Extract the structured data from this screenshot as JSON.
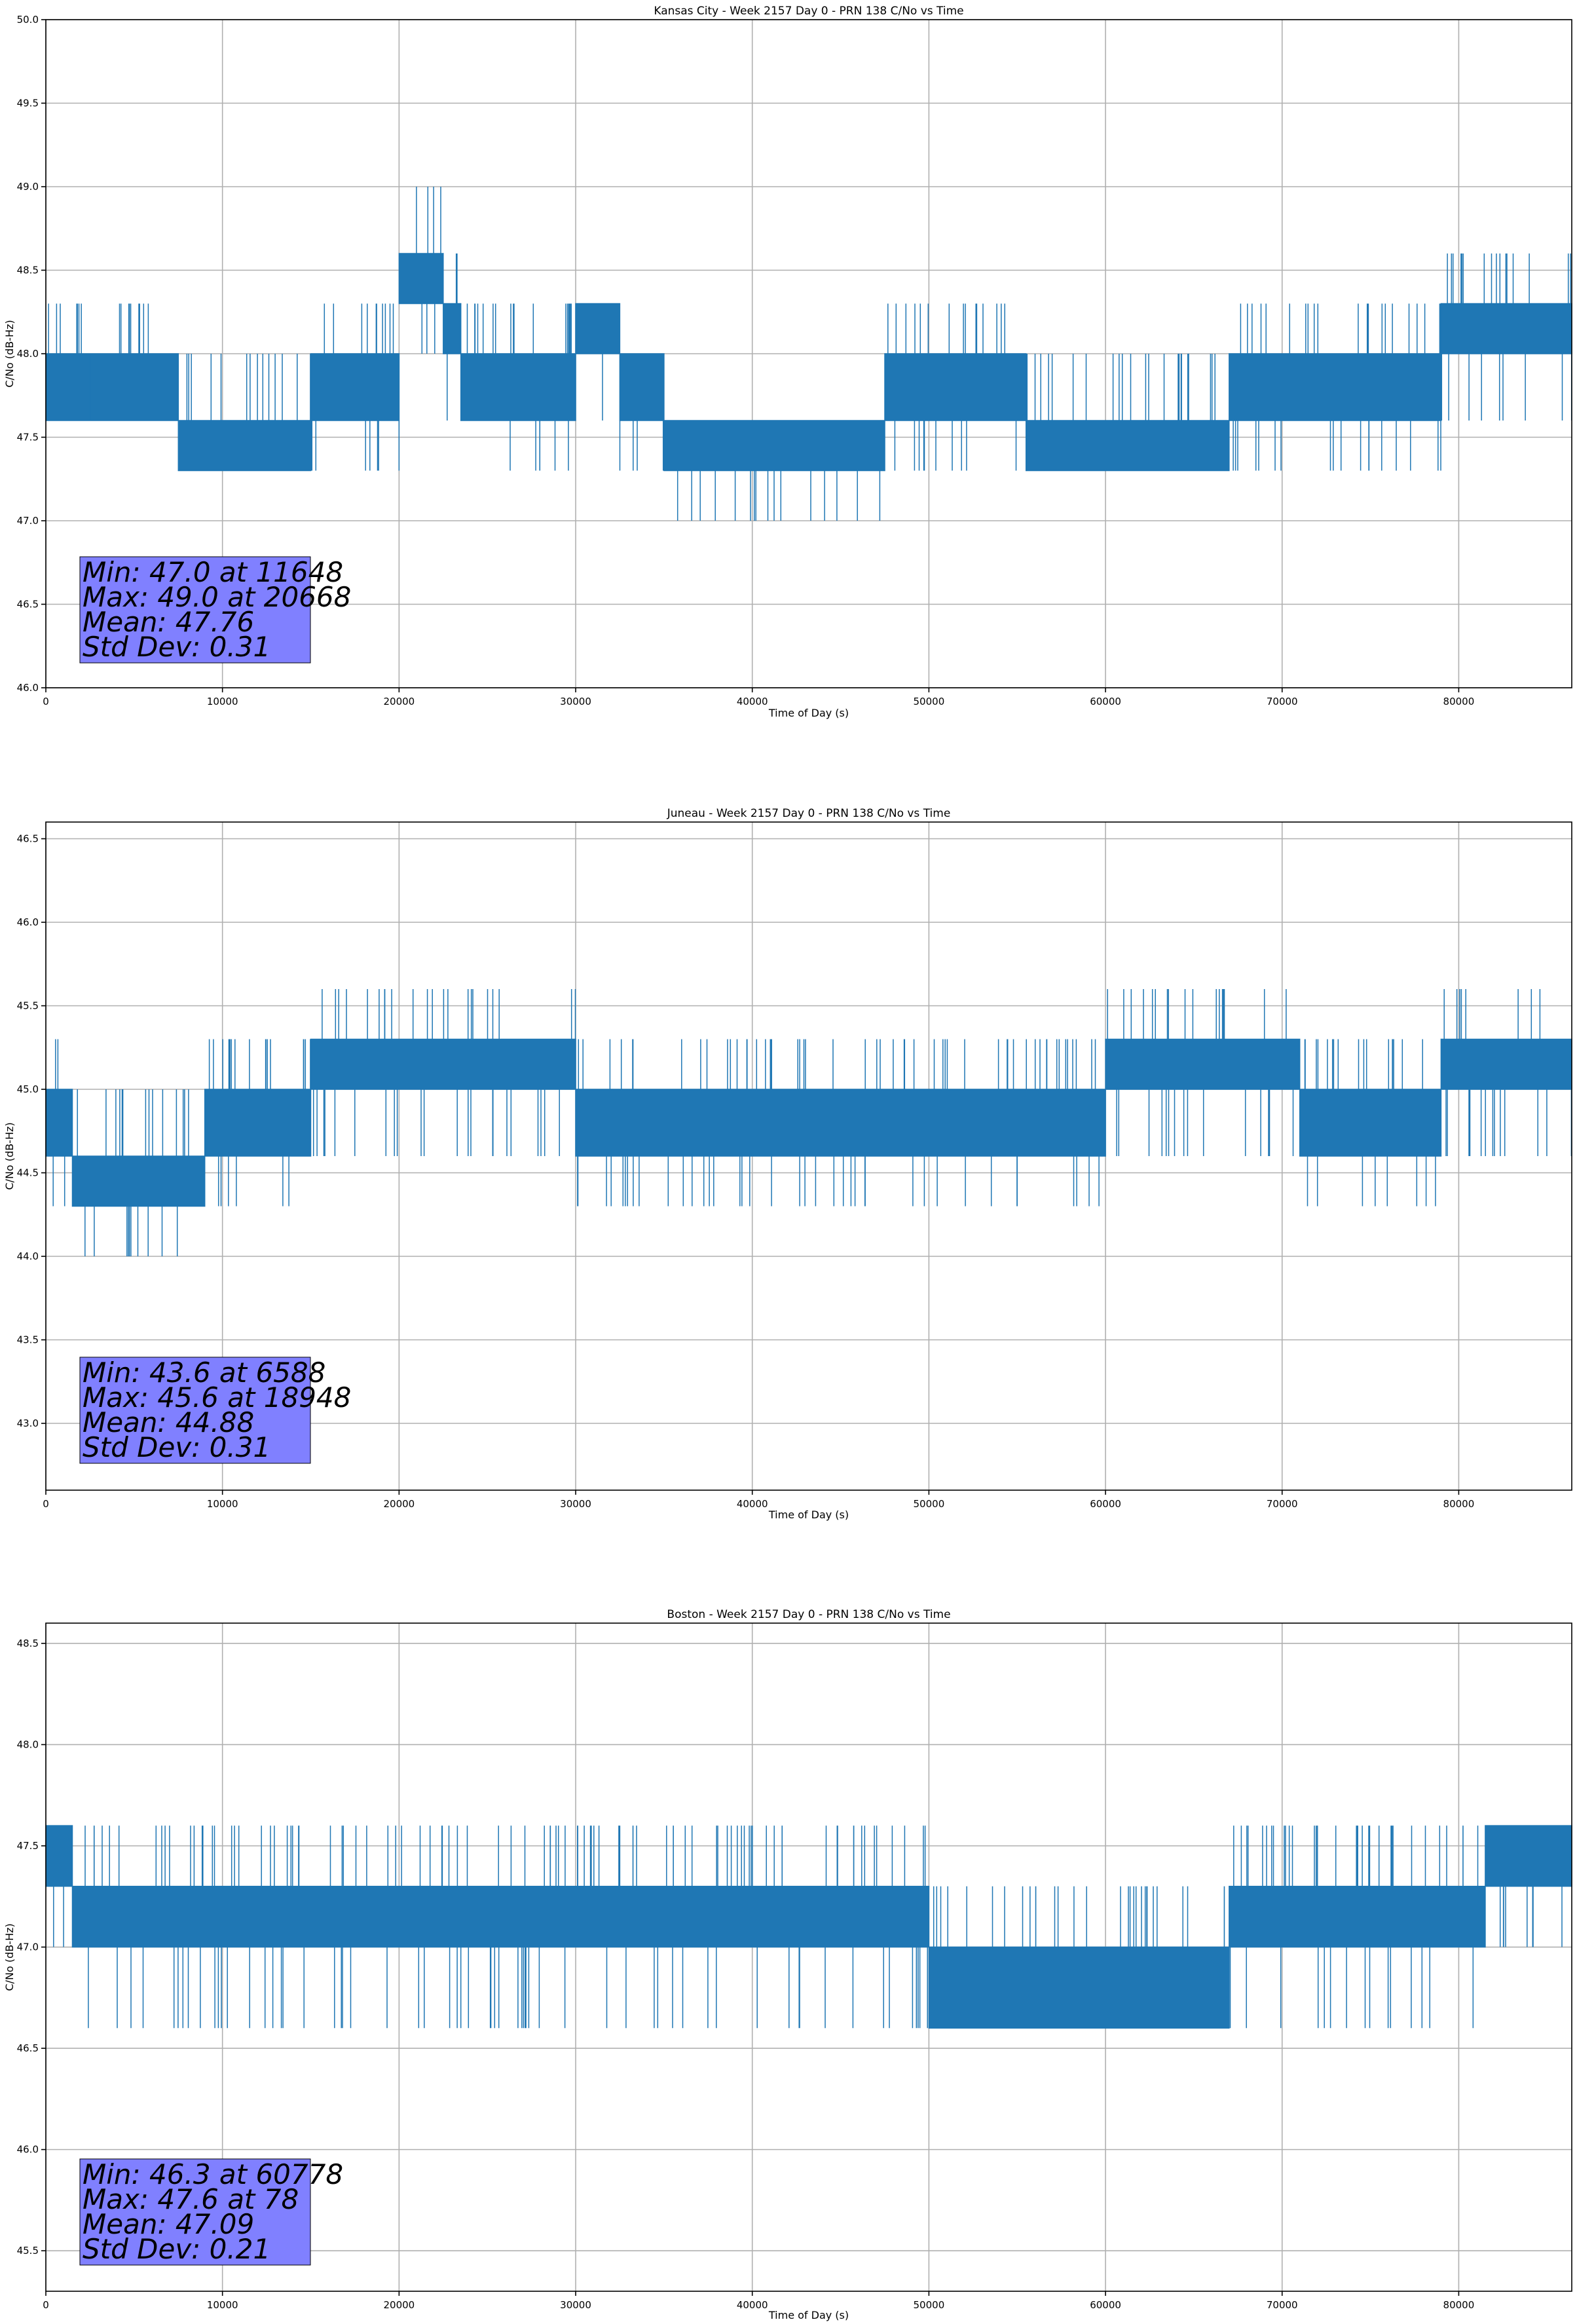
{
  "chart_data": [
    {
      "type": "line",
      "title": "Kansas City - Week 2157 Day 0 - PRN 138 C/No vs Time",
      "xlabel": "Time of Day (s)",
      "ylabel": "C/No (dB-Hz)",
      "xlim": [
        0,
        86400
      ],
      "ylim": [
        46.0,
        50.0
      ],
      "xticks": [
        "0",
        "10000",
        "20000",
        "30000",
        "40000",
        "50000",
        "60000",
        "70000",
        "80000"
      ],
      "xtick_values": [
        0,
        10000,
        20000,
        30000,
        40000,
        50000,
        60000,
        70000,
        80000
      ],
      "yticks": [
        "46.0",
        "46.5",
        "47.0",
        "47.5",
        "48.0",
        "48.5",
        "49.0",
        "49.5",
        "50.0"
      ],
      "ytick_values": [
        46.0,
        46.5,
        47.0,
        47.5,
        48.0,
        48.5,
        49.0,
        49.5,
        50.0
      ],
      "grid": true,
      "color": "#1f77b4",
      "series": [
        {
          "name": "C/No",
          "segments": [
            {
              "x": [
                0,
                2500
              ],
              "levels": [
                47.6,
                48.0,
                48.3
              ],
              "base": [
                47.6,
                48.0
              ],
              "spike_high": 48.3,
              "spike_low": 47.6
            },
            {
              "x": [
                2500,
                7500
              ],
              "levels": [
                47.6,
                48.0
              ],
              "base": [
                47.6,
                48.0
              ],
              "spike_high": 48.3,
              "spike_low": 47.6
            },
            {
              "x": [
                7500,
                15000
              ],
              "levels": [
                47.3,
                47.6
              ],
              "base": [
                47.3,
                47.6
              ],
              "spike_high": 48.0,
              "spike_low": 47.3
            },
            {
              "x": [
                15000,
                20000
              ],
              "levels": [
                47.6,
                48.0
              ],
              "base": [
                47.6,
                48.0
              ],
              "spike_high": 48.3,
              "spike_low": 47.3
            },
            {
              "x": [
                20000,
                22500
              ],
              "levels": [
                48.0,
                48.3,
                48.6
              ],
              "base": [
                48.3,
                48.6
              ],
              "spike_high": 49.0,
              "spike_low": 48.0
            },
            {
              "x": [
                22500,
                23500
              ],
              "levels": [
                48.0,
                48.3
              ],
              "base": [
                48.0,
                48.3
              ],
              "spike_high": 48.6,
              "spike_low": 47.6
            },
            {
              "x": [
                23500,
                30000
              ],
              "levels": [
                47.6,
                48.0
              ],
              "base": [
                47.6,
                48.0
              ],
              "spike_high": 48.3,
              "spike_low": 47.3
            },
            {
              "x": [
                30000,
                32500
              ],
              "levels": [
                48.0,
                48.3
              ],
              "base": [
                48.0,
                48.3
              ],
              "spike_high": 48.3,
              "spike_low": 47.6
            },
            {
              "x": [
                32500,
                35000
              ],
              "levels": [
                47.6,
                48.0
              ],
              "base": [
                47.6,
                48.0
              ],
              "spike_high": 48.0,
              "spike_low": 47.3
            },
            {
              "x": [
                35000,
                47500
              ],
              "levels": [
                47.3,
                47.6
              ],
              "base": [
                47.3,
                47.6
              ],
              "spike_high": 47.6,
              "spike_low": 47.0
            },
            {
              "x": [
                47500,
                55500
              ],
              "levels": [
                47.6,
                48.0
              ],
              "base": [
                47.6,
                48.0
              ],
              "spike_high": 48.3,
              "spike_low": 47.3
            },
            {
              "x": [
                55500,
                67000
              ],
              "levels": [
                47.3,
                47.6
              ],
              "base": [
                47.3,
                47.6
              ],
              "spike_high": 48.0,
              "spike_low": 47.3
            },
            {
              "x": [
                67000,
                79000
              ],
              "levels": [
                47.6,
                48.0
              ],
              "base": [
                47.6,
                48.0
              ],
              "spike_high": 48.3,
              "spike_low": 47.3
            },
            {
              "x": [
                79000,
                86400
              ],
              "levels": [
                48.0,
                48.3
              ],
              "base": [
                48.0,
                48.3
              ],
              "spike_high": 48.6,
              "spike_low": 47.6
            }
          ]
        }
      ],
      "stats": {
        "min": "Min: 47.0 at 11648",
        "max": "Max: 49.0 at 20668",
        "mean": "Mean: 47.76",
        "std": "Std Dev: 0.31"
      }
    },
    {
      "type": "line",
      "title": "Juneau - Week 2157 Day 0 - PRN 138 C/No vs Time",
      "xlabel": "Time of Day (s)",
      "ylabel": "C/No (dB-Hz)",
      "xlim": [
        0,
        86400
      ],
      "ylim": [
        42.6,
        46.6
      ],
      "xticks": [
        "0",
        "10000",
        "20000",
        "30000",
        "40000",
        "50000",
        "60000",
        "70000",
        "80000"
      ],
      "xtick_values": [
        0,
        10000,
        20000,
        30000,
        40000,
        50000,
        60000,
        70000,
        80000
      ],
      "yticks": [
        "43.0",
        "43.5",
        "44.0",
        "44.5",
        "45.0",
        "45.5",
        "46.0",
        "46.5"
      ],
      "ytick_values": [
        43.0,
        43.5,
        44.0,
        44.5,
        45.0,
        45.5,
        46.0,
        46.5
      ],
      "grid": true,
      "color": "#1f77b4",
      "series": [
        {
          "name": "C/No",
          "segments": [
            {
              "x": [
                0,
                1500
              ],
              "levels": [
                44.6,
                45.0
              ],
              "base": [
                44.6,
                45.0
              ],
              "spike_high": 45.3,
              "spike_low": 44.3
            },
            {
              "x": [
                1500,
                9000
              ],
              "levels": [
                44.3,
                44.6
              ],
              "base": [
                44.3,
                44.6
              ],
              "spike_high": 45.0,
              "spike_low": 44.0
            },
            {
              "x": [
                9000,
                15000
              ],
              "levels": [
                44.6,
                45.0
              ],
              "base": [
                44.6,
                45.0
              ],
              "spike_high": 45.3,
              "spike_low": 44.3
            },
            {
              "x": [
                15000,
                30000
              ],
              "levels": [
                45.0,
                45.3
              ],
              "base": [
                45.0,
                45.3
              ],
              "spike_high": 45.6,
              "spike_low": 44.6
            },
            {
              "x": [
                30000,
                60000
              ],
              "levels": [
                44.6,
                45.0
              ],
              "base": [
                44.6,
                45.0
              ],
              "spike_high": 45.3,
              "spike_low": 44.3
            },
            {
              "x": [
                60000,
                71000
              ],
              "levels": [
                45.0,
                45.3
              ],
              "base": [
                45.0,
                45.3
              ],
              "spike_high": 45.6,
              "spike_low": 44.6
            },
            {
              "x": [
                71000,
                79000
              ],
              "levels": [
                44.6,
                45.0
              ],
              "base": [
                44.6,
                45.0
              ],
              "spike_high": 45.3,
              "spike_low": 44.3
            },
            {
              "x": [
                79000,
                86400
              ],
              "levels": [
                45.0,
                45.3
              ],
              "base": [
                45.0,
                45.3
              ],
              "spike_high": 45.6,
              "spike_low": 44.6
            }
          ]
        }
      ],
      "stats": {
        "min": "Min: 43.6 at 6588",
        "max": "Max: 45.6 at 18948",
        "mean": "Mean: 44.88",
        "std": "Std Dev: 0.31"
      }
    },
    {
      "type": "line",
      "title": "Boston - Week 2157 Day 0 - PRN 138 C/No vs Time",
      "xlabel": "Time of Day (s)",
      "ylabel": "C/No (dB-Hz)",
      "xlim": [
        0,
        86400
      ],
      "ylim": [
        45.3,
        48.6
      ],
      "xticks": [
        "0",
        "10000",
        "20000",
        "30000",
        "40000",
        "50000",
        "60000",
        "70000",
        "80000"
      ],
      "xtick_values": [
        0,
        10000,
        20000,
        30000,
        40000,
        50000,
        60000,
        70000,
        80000
      ],
      "yticks": [
        "45.5",
        "46.0",
        "46.5",
        "47.0",
        "47.5",
        "48.0",
        "48.5"
      ],
      "ytick_values": [
        45.5,
        46.0,
        46.5,
        47.0,
        47.5,
        48.0,
        48.5
      ],
      "grid": true,
      "color": "#1f77b4",
      "series": [
        {
          "name": "C/No",
          "segments": [
            {
              "x": [
                0,
                1500
              ],
              "levels": [
                47.0,
                47.3,
                47.6
              ],
              "base": [
                47.3,
                47.6
              ],
              "spike_high": 47.6,
              "spike_low": 47.0
            },
            {
              "x": [
                1500,
                50000
              ],
              "levels": [
                47.0,
                47.3
              ],
              "base": [
                47.0,
                47.3
              ],
              "spike_high": 47.6,
              "spike_low": 46.6
            },
            {
              "x": [
                50000,
                67000
              ],
              "levels": [
                46.6,
                47.0
              ],
              "base": [
                46.6,
                47.0
              ],
              "spike_high": 47.3,
              "spike_low": 46.6
            },
            {
              "x": [
                67000,
                81500
              ],
              "levels": [
                47.0,
                47.3
              ],
              "base": [
                47.0,
                47.3
              ],
              "spike_high": 47.6,
              "spike_low": 46.6
            },
            {
              "x": [
                81500,
                86400
              ],
              "levels": [
                47.0,
                47.3,
                47.6
              ],
              "base": [
                47.3,
                47.6
              ],
              "spike_high": 47.6,
              "spike_low": 47.0
            }
          ]
        }
      ],
      "stats": {
        "min": "Min: 46.3 at 60778",
        "max": "Max: 47.6 at 78",
        "mean": "Mean: 47.09",
        "std": "Std Dev: 0.21"
      }
    }
  ]
}
